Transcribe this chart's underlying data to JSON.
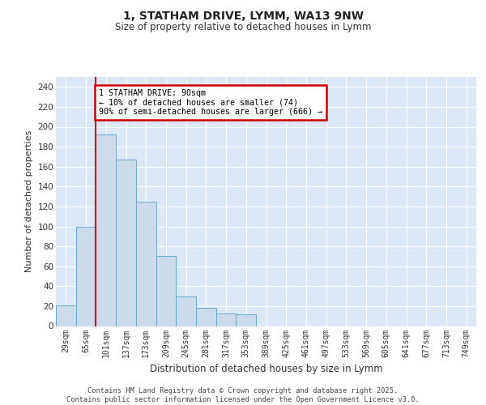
{
  "title_line1": "1, STATHAM DRIVE, LYMM, WA13 9NW",
  "title_line2": "Size of property relative to detached houses in Lymm",
  "xlabel": "Distribution of detached houses by size in Lymm",
  "ylabel": "Number of detached properties",
  "bar_color": "#ccdaeb",
  "bar_edge_color": "#6aaad4",
  "bg_color": "#dce8f5",
  "grid_color": "#ffffff",
  "categories": [
    "29sqm",
    "65sqm",
    "101sqm",
    "137sqm",
    "173sqm",
    "209sqm",
    "245sqm",
    "281sqm",
    "317sqm",
    "353sqm",
    "389sqm",
    "425sqm",
    "461sqm",
    "497sqm",
    "533sqm",
    "569sqm",
    "605sqm",
    "641sqm",
    "677sqm",
    "713sqm",
    "749sqm"
  ],
  "values": [
    21,
    100,
    192,
    167,
    125,
    70,
    30,
    18,
    13,
    12,
    0,
    0,
    0,
    0,
    0,
    0,
    0,
    0,
    0,
    0,
    0
  ],
  "red_line_x": 1.5,
  "annotation_text": "1 STATHAM DRIVE: 90sqm\n← 10% of detached houses are smaller (74)\n90% of semi-detached houses are larger (666) →",
  "annotation_box_color": "#ffffff",
  "annotation_border_color": "#cc0000",
  "red_line_color": "#cc0000",
  "footer_text": "Contains HM Land Registry data © Crown copyright and database right 2025.\nContains public sector information licensed under the Open Government Licence v3.0.",
  "ylim": [
    0,
    250
  ],
  "yticks": [
    0,
    20,
    40,
    60,
    80,
    100,
    120,
    140,
    160,
    180,
    200,
    220,
    240
  ]
}
